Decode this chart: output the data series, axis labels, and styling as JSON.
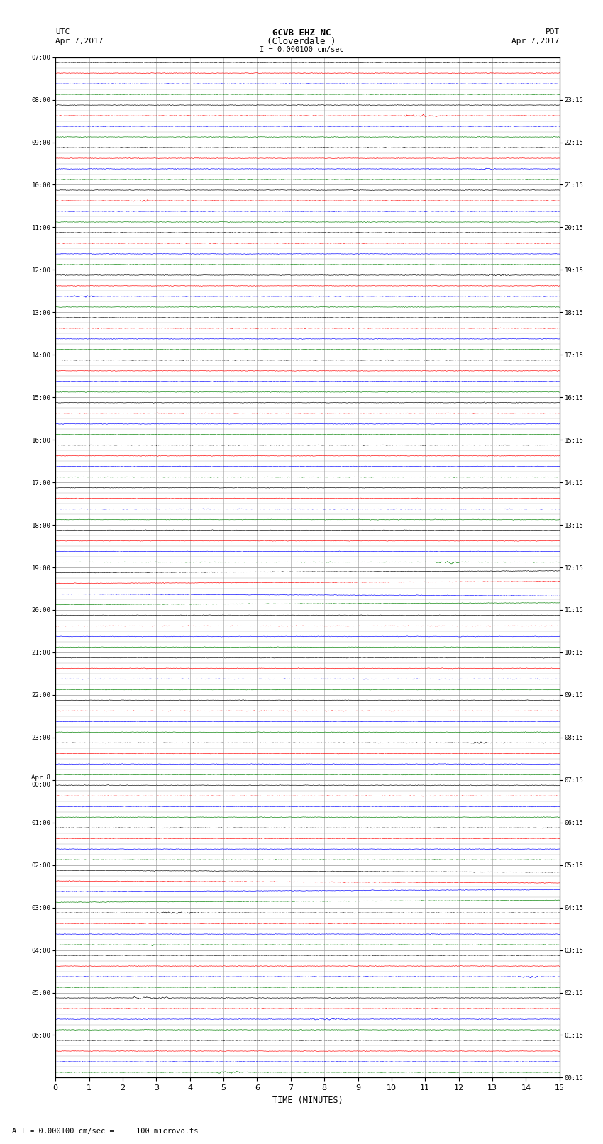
{
  "title_line1": "GCVB EHZ NC",
  "title_line2": "(Cloverdale )",
  "title_line3": "I = 0.000100 cm/sec",
  "left_header_line1": "UTC",
  "left_header_line2": "Apr 7,2017",
  "right_header_line1": "PDT",
  "right_header_line2": "Apr 7,2017",
  "xlabel": "TIME (MINUTES)",
  "footer": "A I = 0.000100 cm/sec =     100 microvolts",
  "bg_color": "#ffffff",
  "grid_color": "#999999",
  "trace_colors": [
    "black",
    "red",
    "blue",
    "green"
  ],
  "utc_hour_labels": [
    "07:00",
    "08:00",
    "09:00",
    "10:00",
    "11:00",
    "12:00",
    "13:00",
    "14:00",
    "15:00",
    "16:00",
    "17:00",
    "18:00",
    "19:00",
    "20:00",
    "21:00",
    "22:00",
    "23:00",
    "Apr 8\n00:00",
    "01:00",
    "02:00",
    "03:00",
    "04:00",
    "05:00",
    "06:00"
  ],
  "pdt_hour_labels": [
    "00:15",
    "01:15",
    "02:15",
    "03:15",
    "04:15",
    "05:15",
    "06:15",
    "07:15",
    "08:15",
    "09:15",
    "10:15",
    "11:15",
    "12:15",
    "13:15",
    "14:15",
    "15:15",
    "16:15",
    "17:15",
    "18:15",
    "19:15",
    "20:15",
    "21:15",
    "22:15",
    "23:15"
  ],
  "n_hours": 24,
  "traces_per_hour": 4,
  "xmin": 0,
  "xmax": 15,
  "xticks": [
    0,
    1,
    2,
    3,
    4,
    5,
    6,
    7,
    8,
    9,
    10,
    11,
    12,
    13,
    14,
    15
  ],
  "noise_amp": 0.022,
  "seed": 42,
  "special_drift_rows": [
    48,
    49,
    50,
    51,
    76,
    77,
    78,
    79
  ],
  "drift_amp": 0.18
}
